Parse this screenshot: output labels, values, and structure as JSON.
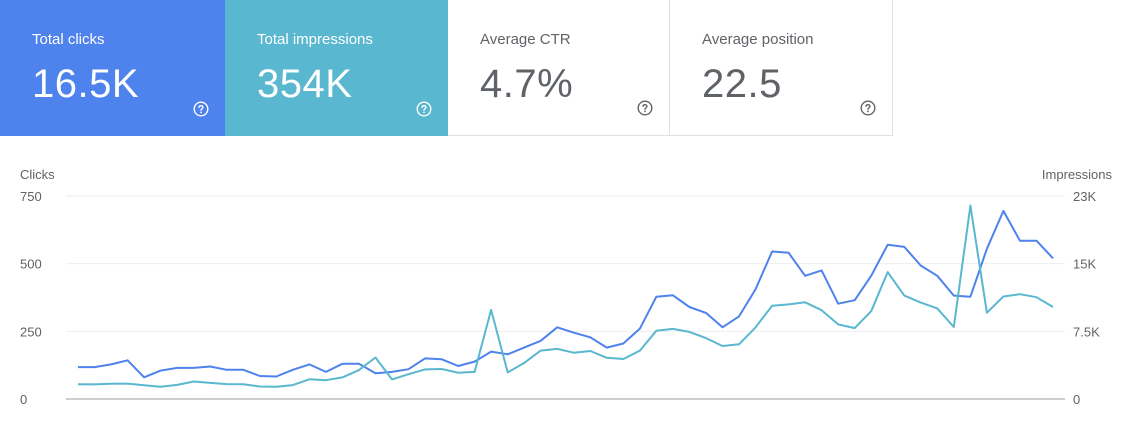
{
  "cards": [
    {
      "label": "Total clicks",
      "value": "16.5K",
      "bg": "#4e82ec",
      "icon": "help-circle-icon"
    },
    {
      "label": "Total impressions",
      "value": "354K",
      "bg": "#59b7d0",
      "icon": "help-circle-icon"
    },
    {
      "label": "Average CTR",
      "value": "4.7%",
      "icon": "help-circle-icon"
    },
    {
      "label": "Average position",
      "value": "22.5",
      "icon": "help-circle-icon"
    }
  ],
  "chart_data": {
    "type": "line",
    "left_axis": {
      "label": "Clicks",
      "ticks": [
        "0",
        "250",
        "500",
        "750"
      ],
      "ylim": [
        0,
        750
      ]
    },
    "right_axis": {
      "label": "Impressions",
      "ticks": [
        "0",
        "7.5K",
        "15K",
        "23K"
      ],
      "ylim": [
        0,
        22500
      ]
    },
    "grid": true,
    "series": [
      {
        "color": "#4e82ec",
        "axis": "left",
        "values": [
          118,
          118,
          128,
          143,
          80,
          105,
          115,
          115,
          120,
          108,
          108,
          85,
          83,
          108,
          128,
          100,
          130,
          130,
          95,
          100,
          110,
          150,
          147,
          122,
          138,
          175,
          165,
          190,
          215,
          265,
          245,
          228,
          190,
          205,
          260,
          378,
          383,
          340,
          318,
          265,
          305,
          405,
          545,
          540,
          455,
          475,
          352,
          365,
          455,
          570,
          562,
          493,
          455,
          382,
          378,
          555,
          695,
          585,
          585,
          520
        ]
      },
      {
        "color": "#59b7d0",
        "axis": "right",
        "values": [
          1640,
          1620,
          1680,
          1710,
          1520,
          1350,
          1560,
          1940,
          1790,
          1650,
          1640,
          1380,
          1350,
          1540,
          2180,
          2080,
          2390,
          3200,
          4600,
          2170,
          2750,
          3280,
          3330,
          2920,
          3000,
          9880,
          2950,
          4000,
          5370,
          5550,
          5130,
          5320,
          4570,
          4430,
          5370,
          7570,
          7770,
          7440,
          6750,
          5870,
          6060,
          7940,
          10330,
          10480,
          10720,
          9840,
          8270,
          7860,
          9730,
          14060,
          11460,
          10690,
          10040,
          7980,
          21440,
          9560,
          11360,
          11620,
          11280,
          10200
        ]
      }
    ]
  }
}
